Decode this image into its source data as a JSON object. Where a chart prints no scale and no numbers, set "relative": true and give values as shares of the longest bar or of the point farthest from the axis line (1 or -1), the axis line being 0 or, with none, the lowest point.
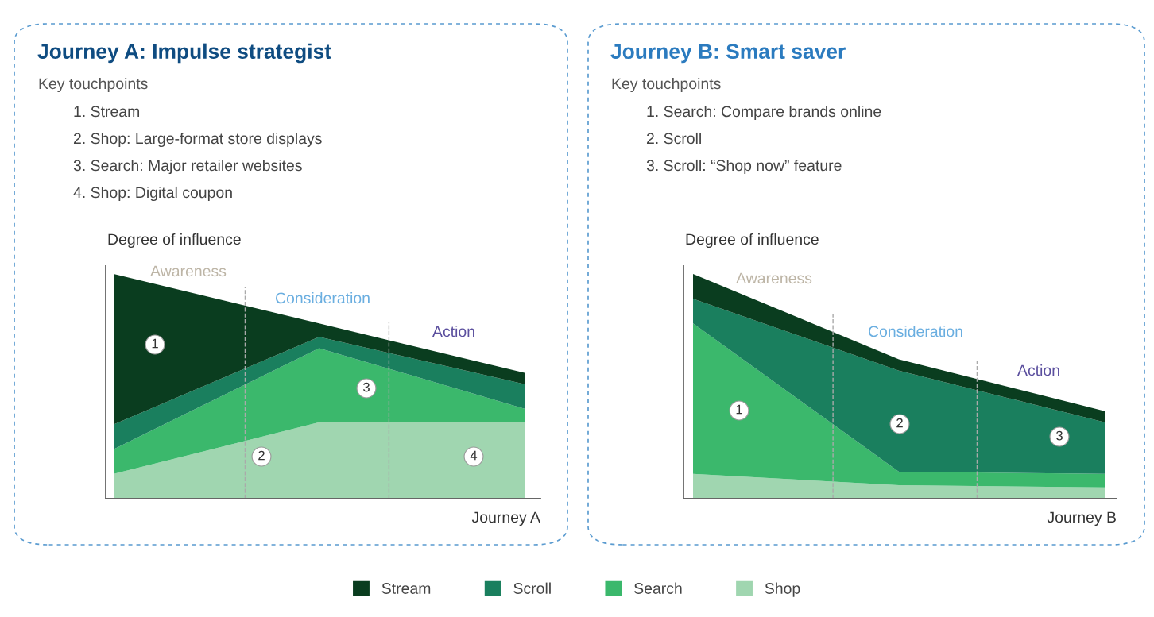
{
  "chart_data": [
    {
      "type": "area",
      "title": "Journey A: Impulse strategist",
      "subtitle": "Key touchpoints",
      "ylabel": "Degree of influence",
      "xlabel": "Journey A",
      "relative": true,
      "stacked": true,
      "legend": "bottom",
      "categories": [
        null,
        null,
        null
      ],
      "series": [
        {
          "name": "Shop",
          "color": "#a0d6b0",
          "values": [
            0.11,
            0.34,
            0.34
          ]
        },
        {
          "name": "Search",
          "color": "#3bb86c",
          "values": [
            0.11,
            0.33,
            0.06
          ]
        },
        {
          "name": "Scroll",
          "color": "#1a7f5e",
          "values": [
            0.11,
            0.05,
            0.11
          ]
        },
        {
          "name": "Stream",
          "color": "#0a3d1f",
          "values": [
            0.67,
            0.06,
            0.05
          ]
        }
      ],
      "annotations": [
        "1. Stream",
        "2. Shop: Large-format store displays",
        "3. Search: Major retailer websites",
        "4. Shop: Digital coupon",
        "Awareness",
        "Consideration",
        "Action",
        "1",
        "2",
        "3",
        "4"
      ]
    },
    {
      "type": "area",
      "title": "Journey B: Smart saver",
      "subtitle": "Key touchpoints",
      "ylabel": "Degree of influence",
      "xlabel": "Journey B",
      "relative": true,
      "stacked": true,
      "categories": [
        null,
        null,
        null
      ],
      "series": [
        {
          "color": "#a0d6b0",
          "values": [
            0.11,
            0.06,
            0.05
          ]
        },
        {
          "color": "#3bb86c",
          "values": [
            0.67,
            0.06,
            0.06
          ]
        },
        {
          "color": "#1a7f5e",
          "values": [
            0.11,
            0.45,
            0.23
          ]
        },
        {
          "color": "#0a3d1f",
          "values": [
            0.11,
            0.05,
            0.05
          ]
        }
      ],
      "annotations": [
        "1. Search: Compare brands online",
        "2. Scroll",
        "3. Scroll: “Shop now” feature",
        "Awareness",
        "Consideration",
        "Action",
        "1",
        "2",
        "3"
      ]
    }
  ]
}
